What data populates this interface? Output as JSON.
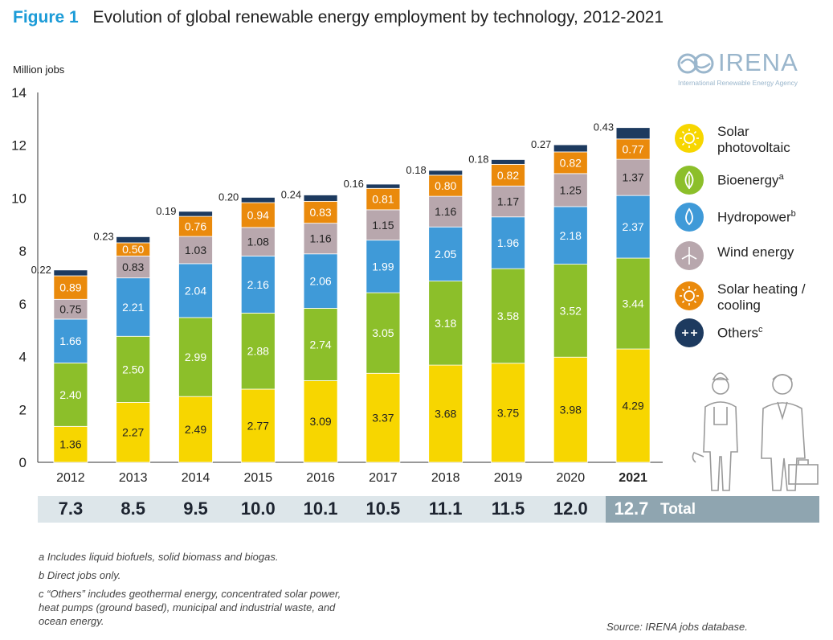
{
  "figure_label": "Figure 1",
  "title": "Evolution of global renewable energy employment by technology, 2012-2021",
  "ylabel": "Million jobs",
  "logo": {
    "wordmark": "IRENA",
    "subtitle": "International Renewable Energy Agency"
  },
  "colors": {
    "solar_pv": "#f7d600",
    "bioenergy": "#8cbf2a",
    "hydropower": "#3f9ad8",
    "wind": "#b8a7ad",
    "solar_heating": "#ea8a0c",
    "others": "#1d3a5f",
    "title_accent": "#1b9bd7",
    "totals_band": "#dde6ea",
    "totals_highlight": "#8fa5b0"
  },
  "legend": [
    {
      "key": "solar_pv",
      "label_lines": [
        "Solar",
        "photovoltaic"
      ],
      "sup": "",
      "icon": "sun-icon"
    },
    {
      "key": "bioenergy",
      "label_lines": [
        "Bioenergy"
      ],
      "sup": "a",
      "icon": "leaf-icon"
    },
    {
      "key": "hydropower",
      "label_lines": [
        "Hydropower"
      ],
      "sup": "b",
      "icon": "water-drop-icon"
    },
    {
      "key": "wind",
      "label_lines": [
        "Wind energy"
      ],
      "sup": "",
      "icon": "wind-turbine-icon"
    },
    {
      "key": "solar_heating",
      "label_lines": [
        "Solar heating /",
        "cooling"
      ],
      "sup": "",
      "icon": "sun-icon"
    },
    {
      "key": "others",
      "label_lines": [
        "Others"
      ],
      "sup": "c",
      "icon": "plus-minus-icon"
    }
  ],
  "chart_data": {
    "type": "bar",
    "stacked": true,
    "title": "Evolution of global renewable energy employment by technology, 2012-2021",
    "ylabel": "Million jobs",
    "ylim": [
      0,
      14
    ],
    "yticks": [
      0,
      2,
      4,
      6,
      8,
      10,
      12,
      14
    ],
    "categories": [
      "2012",
      "2013",
      "2014",
      "2015",
      "2016",
      "2017",
      "2018",
      "2019",
      "2020",
      "2021"
    ],
    "highlight_category": "2021",
    "series": [
      {
        "key": "solar_pv",
        "name": "Solar photovoltaic",
        "values": [
          1.36,
          2.27,
          2.49,
          2.77,
          3.09,
          3.37,
          3.68,
          3.75,
          3.98,
          4.29
        ],
        "labels": [
          "1.36",
          "2.27",
          "2.49",
          "2.77",
          "3.09",
          "3.37",
          "3.68",
          "3.75",
          "3.98",
          "4.29"
        ]
      },
      {
        "key": "bioenergy",
        "name": "Bioenergy",
        "values": [
          2.4,
          2.5,
          2.99,
          2.88,
          2.74,
          3.05,
          3.18,
          3.58,
          3.52,
          3.44
        ],
        "labels": [
          "2.40",
          "2.50",
          "2.99",
          "2.88",
          "2.74",
          "3.05",
          "3.18",
          "3.58",
          "3.52",
          "3.44"
        ]
      },
      {
        "key": "hydropower",
        "name": "Hydropower",
        "values": [
          1.66,
          2.21,
          2.04,
          2.16,
          2.06,
          1.99,
          2.05,
          1.96,
          2.18,
          2.37
        ],
        "labels": [
          "1.66",
          "2.21",
          "2.04",
          "2.16",
          "2.06",
          "1.99",
          "2.05",
          "1.96",
          "2.18",
          "2.37"
        ]
      },
      {
        "key": "wind",
        "name": "Wind energy",
        "values": [
          0.75,
          0.83,
          1.03,
          1.08,
          1.16,
          1.15,
          1.16,
          1.17,
          1.25,
          1.37
        ],
        "labels": [
          "0.75",
          "0.83",
          "1.03",
          "1.08",
          "1.16",
          "1.15",
          "1.16",
          "1.17",
          "1.25",
          "1.37"
        ]
      },
      {
        "key": "solar_heating",
        "name": "Solar heating / cooling",
        "values": [
          0.89,
          0.5,
          0.76,
          0.94,
          0.83,
          0.81,
          0.8,
          0.82,
          0.82,
          0.77
        ],
        "labels": [
          "0.89",
          "0.50",
          "0.76",
          "0.94",
          "0.83",
          "0.81",
          "0.80",
          "0.82",
          "0.82",
          "0.77"
        ]
      },
      {
        "key": "others",
        "name": "Others",
        "values": [
          0.22,
          0.23,
          0.19,
          0.2,
          0.24,
          0.16,
          0.18,
          0.18,
          0.27,
          0.43
        ],
        "labels": [
          "0.22",
          "0.23",
          "0.19",
          "0.20",
          "0.24",
          "0.16",
          "0.18",
          "0.18",
          "0.27",
          "0.43"
        ]
      }
    ],
    "totals": [
      "7.3",
      "8.5",
      "9.5",
      "10.0",
      "10.1",
      "10.5",
      "11.1",
      "11.5",
      "12.0",
      "12.7"
    ],
    "totals_label": "Total",
    "legend_position": "right"
  },
  "notes": [
    "a  Includes liquid biofuels, solid biomass and biogas.",
    "b  Direct jobs only.",
    "c “Others” includes geothermal energy, concentrated solar power,",
    "heat pumps (ground based), municipal and industrial waste, and",
    "ocean energy."
  ],
  "source": "Source: IRENA jobs database."
}
